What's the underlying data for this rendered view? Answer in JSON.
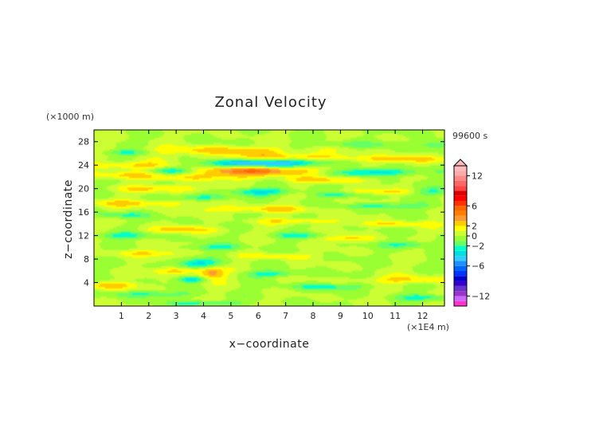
{
  "chart_data": {
    "type": "heatmap",
    "title": "Zonal Velocity",
    "xlabel": "x−coordinate",
    "ylabel": "z−coordinate",
    "x_unit": "(×1E4 m)",
    "y_unit": "(×1000 m)",
    "time_label": "99600 s",
    "xlim": [
      0,
      12.8
    ],
    "ylim": [
      0,
      30
    ],
    "x_ticks": [
      1,
      2,
      3,
      4,
      5,
      6,
      7,
      8,
      9,
      10,
      11,
      12
    ],
    "y_ticks": [
      4,
      8,
      12,
      16,
      20,
      24,
      28
    ],
    "colorbar": {
      "ticks": [
        12,
        6,
        2,
        0,
        -2,
        -6,
        -12
      ],
      "tick_labels": [
        "12",
        "6",
        "2",
        "0",
        "−2",
        "−6",
        "−12"
      ],
      "levels": [
        -14,
        -13,
        -12,
        -11,
        -10,
        -9,
        -8,
        -7,
        -6,
        -5,
        -4,
        -3,
        -2,
        -1,
        0,
        1,
        2,
        3,
        4,
        5,
        6,
        7,
        8,
        9,
        10,
        11,
        12,
        13,
        14
      ],
      "colors": [
        "#ff33cc",
        "#cc66ff",
        "#9933cc",
        "#6633cc",
        "#3300cc",
        "#0000cc",
        "#0033ff",
        "#0066ff",
        "#1e90ff",
        "#33ccff",
        "#00e0e0",
        "#00ffcc",
        "#66ff66",
        "#99ff33",
        "#ccff33",
        "#ffff00",
        "#ffcc00",
        "#ff9933",
        "#ff8000",
        "#ff6600",
        "#ff3300",
        "#ff0000",
        "#dd0000",
        "#ff4444",
        "#ff6666",
        "#ff8888",
        "#ffaaaa",
        "#ffbbbb"
      ],
      "extend": "max"
    },
    "features": [
      {
        "x": 4.5,
        "y": 26.5,
        "sx": 3.0,
        "sy": 0.7,
        "a": 2.5
      },
      {
        "x": 7.0,
        "y": 25.5,
        "sx": 2.5,
        "sy": 0.6,
        "a": 2.2
      },
      {
        "x": 11.0,
        "y": 25.0,
        "sx": 2.2,
        "sy": 0.6,
        "a": 2.3
      },
      {
        "x": 1.5,
        "y": 24.0,
        "sx": 1.6,
        "sy": 0.7,
        "a": 2.4
      },
      {
        "x": 5.8,
        "y": 24.3,
        "sx": 1.8,
        "sy": 0.6,
        "a": -5.0
      },
      {
        "x": 8.0,
        "y": 24.5,
        "sx": 1.2,
        "sy": 0.6,
        "a": -2.0
      },
      {
        "x": 10.4,
        "y": 22.8,
        "sx": 1.5,
        "sy": 0.6,
        "a": -3.5
      },
      {
        "x": 5.9,
        "y": 23.0,
        "sx": 2.0,
        "sy": 0.7,
        "a": 4.5
      },
      {
        "x": 4.0,
        "y": 22.0,
        "sx": 2.5,
        "sy": 0.7,
        "a": 2.0
      },
      {
        "x": 0.7,
        "y": 22.3,
        "sx": 1.2,
        "sy": 0.6,
        "a": 2.2
      },
      {
        "x": 2.8,
        "y": 23.0,
        "sx": 0.8,
        "sy": 0.6,
        "a": -3.0
      },
      {
        "x": 8.5,
        "y": 21.5,
        "sx": 1.5,
        "sy": 0.5,
        "a": 2.2
      },
      {
        "x": 2.5,
        "y": 20.0,
        "sx": 1.5,
        "sy": 0.6,
        "a": 2.3
      },
      {
        "x": 6.2,
        "y": 19.5,
        "sx": 1.2,
        "sy": 0.6,
        "a": -3.2
      },
      {
        "x": 10.5,
        "y": 19.5,
        "sx": 1.8,
        "sy": 0.5,
        "a": 2.0
      },
      {
        "x": 4.0,
        "y": 18.5,
        "sx": 1.0,
        "sy": 0.5,
        "a": -2.5
      },
      {
        "x": 8.9,
        "y": 19.0,
        "sx": 0.8,
        "sy": 0.5,
        "a": -2.5
      },
      {
        "x": 12.3,
        "y": 19.5,
        "sx": 0.8,
        "sy": 0.6,
        "a": -2.5
      },
      {
        "x": 1.5,
        "y": 17.5,
        "sx": 2.0,
        "sy": 0.6,
        "a": 2.2
      },
      {
        "x": 6.0,
        "y": 16.5,
        "sx": 2.5,
        "sy": 0.6,
        "a": 2.2
      },
      {
        "x": 10.5,
        "y": 17.0,
        "sx": 1.5,
        "sy": 0.5,
        "a": -2.5
      },
      {
        "x": 0.9,
        "y": 15.5,
        "sx": 1.0,
        "sy": 0.5,
        "a": -2.2
      },
      {
        "x": 3.2,
        "y": 13.0,
        "sx": 1.5,
        "sy": 0.6,
        "a": 2.2
      },
      {
        "x": 7.5,
        "y": 14.5,
        "sx": 1.5,
        "sy": 0.5,
        "a": 2.0
      },
      {
        "x": 11.0,
        "y": 14.0,
        "sx": 1.5,
        "sy": 0.5,
        "a": 2.0
      },
      {
        "x": 1.0,
        "y": 12.0,
        "sx": 1.0,
        "sy": 0.6,
        "a": -2.5
      },
      {
        "x": 7.5,
        "y": 12.0,
        "sx": 1.0,
        "sy": 0.5,
        "a": -2.2
      },
      {
        "x": 9.2,
        "y": 11.5,
        "sx": 1.0,
        "sy": 0.6,
        "a": 2.3
      },
      {
        "x": 11.5,
        "y": 10.5,
        "sx": 1.0,
        "sy": 0.6,
        "a": -2.3
      },
      {
        "x": 4.5,
        "y": 10.0,
        "sx": 1.0,
        "sy": 0.6,
        "a": -2.2
      },
      {
        "x": 2.0,
        "y": 9.0,
        "sx": 1.5,
        "sy": 0.6,
        "a": 2.0
      },
      {
        "x": 6.8,
        "y": 8.5,
        "sx": 1.2,
        "sy": 0.5,
        "a": 2.0
      },
      {
        "x": 3.8,
        "y": 7.2,
        "sx": 0.8,
        "sy": 0.8,
        "a": -3.5
      },
      {
        "x": 4.3,
        "y": 5.5,
        "sx": 0.5,
        "sy": 1.2,
        "a": 3.5
      },
      {
        "x": 3.0,
        "y": 6.0,
        "sx": 1.0,
        "sy": 0.6,
        "a": 2.5
      },
      {
        "x": 3.6,
        "y": 4.5,
        "sx": 0.6,
        "sy": 0.5,
        "a": -3.5
      },
      {
        "x": 6.5,
        "y": 5.5,
        "sx": 1.0,
        "sy": 0.5,
        "a": -2.5
      },
      {
        "x": 11.5,
        "y": 4.5,
        "sx": 1.5,
        "sy": 0.7,
        "a": 2.3
      },
      {
        "x": 0.6,
        "y": 3.5,
        "sx": 1.2,
        "sy": 0.6,
        "a": 2.3
      },
      {
        "x": 8.5,
        "y": 3.3,
        "sx": 1.5,
        "sy": 0.5,
        "a": -2.3
      },
      {
        "x": 2.0,
        "y": 2.0,
        "sx": 1.5,
        "sy": 0.5,
        "a": -2.2
      },
      {
        "x": 4.0,
        "y": 0.5,
        "sx": 1.2,
        "sy": 0.4,
        "a": -2.5
      },
      {
        "x": 12.2,
        "y": 1.5,
        "sx": 1.0,
        "sy": 0.5,
        "a": -2.5
      },
      {
        "x": 12.5,
        "y": 27.5,
        "sx": 0.6,
        "sy": 0.8,
        "a": -2.2
      },
      {
        "x": 1.2,
        "y": 26.2,
        "sx": 1.0,
        "sy": 0.5,
        "a": -2.5
      },
      {
        "x": 9.5,
        "y": 27.5,
        "sx": 1.5,
        "sy": 0.5,
        "a": -1.5
      }
    ]
  }
}
